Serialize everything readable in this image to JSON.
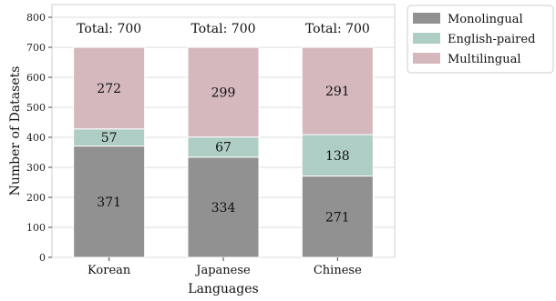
{
  "chart_data": {
    "type": "bar",
    "stacked": true,
    "xlabel": "Languages",
    "ylabel": "Number of Datasets",
    "ylim": [
      0,
      840
    ],
    "yticks": [
      0,
      100,
      200,
      300,
      400,
      500,
      600,
      700,
      800
    ],
    "grid": true,
    "legend_position": "outside-top-right",
    "categories": [
      "Korean",
      "Japanese",
      "Chinese"
    ],
    "series": [
      {
        "name": "Monolingual",
        "color": "#919191",
        "values": [
          371,
          334,
          271
        ]
      },
      {
        "name": "English-paired",
        "color": "#aecdc4",
        "values": [
          57,
          67,
          138
        ]
      },
      {
        "name": "Multilingual",
        "color": "#d5b8bd",
        "values": [
          272,
          299,
          291
        ]
      }
    ],
    "total_labels": [
      "Total: 700",
      "Total: 700",
      "Total: 700"
    ]
  }
}
